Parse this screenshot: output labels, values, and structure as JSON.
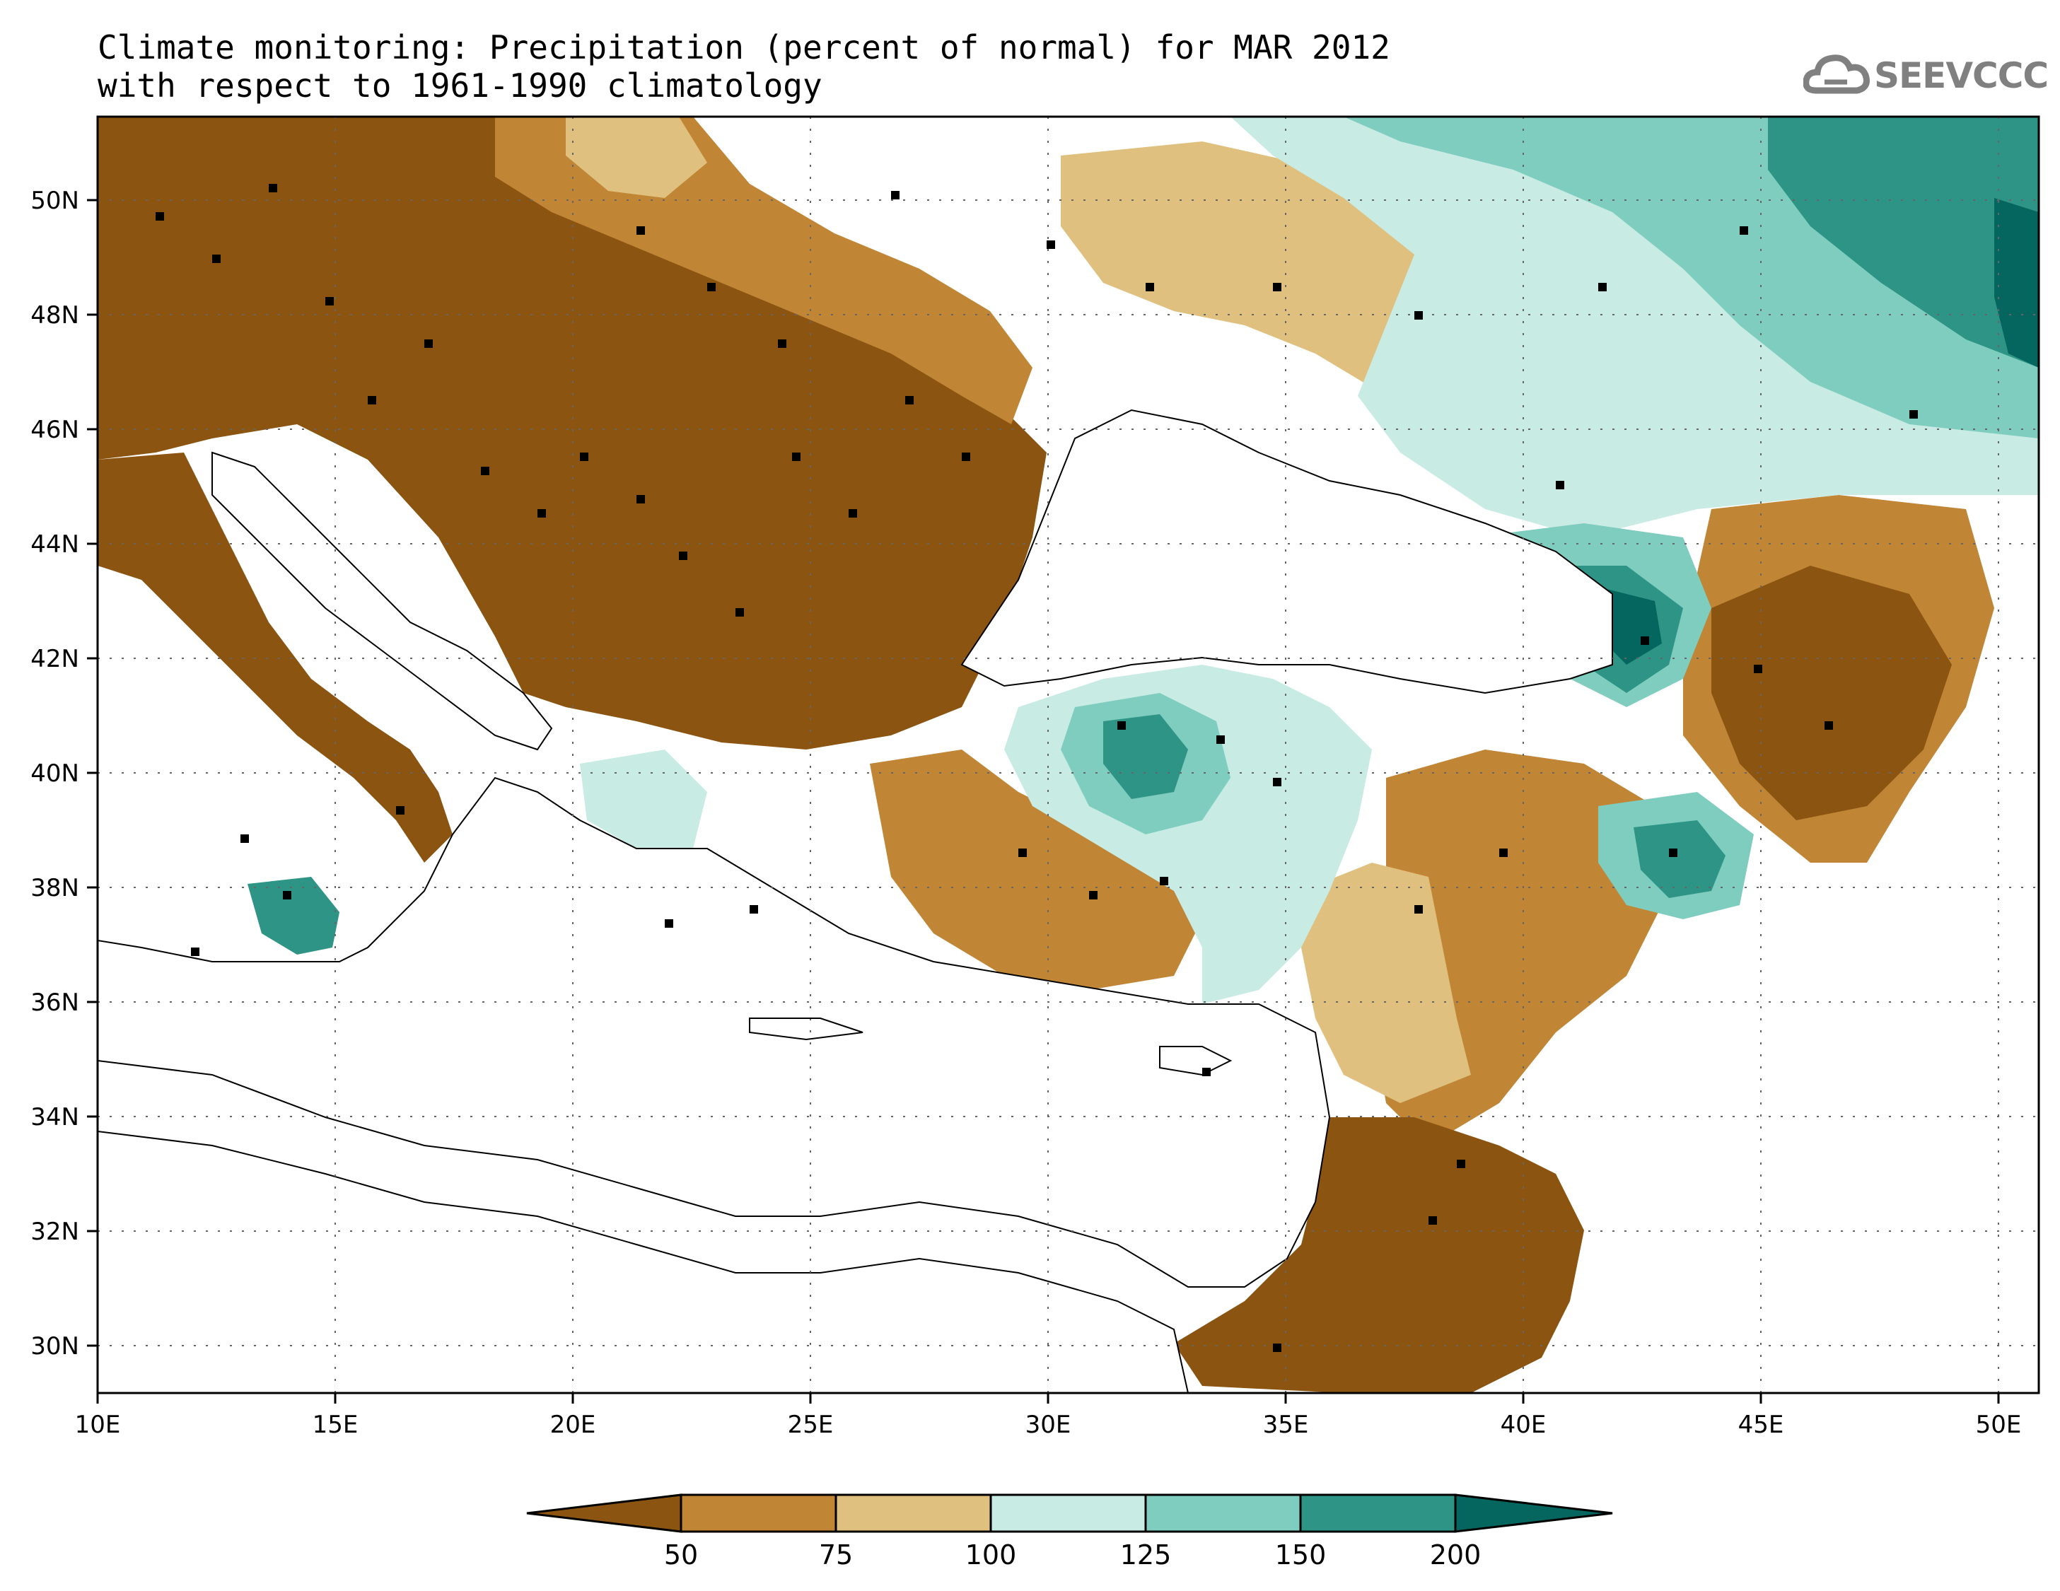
{
  "title": {
    "line1": "Climate monitoring: Precipitation (percent of normal) for MAR 2012",
    "line2": "with respect to 1961-1990 climatology"
  },
  "logo": {
    "text": "SEEVCCC",
    "icon": "cloud-icon"
  },
  "axes": {
    "x_ticks": [
      "10E",
      "15E",
      "20E",
      "25E",
      "30E",
      "35E",
      "40E",
      "45E",
      "50E"
    ],
    "y_ticks": [
      "50N",
      "48N",
      "46N",
      "44N",
      "42N",
      "40N",
      "38N",
      "36N",
      "34N",
      "32N",
      "30N"
    ]
  },
  "colorbar": {
    "labels": [
      "50",
      "75",
      "100",
      "125",
      "150",
      "200"
    ],
    "colors": [
      "#8b5410",
      "#c08535",
      "#dfc07e",
      "#c8ebe3",
      "#7ecdbf",
      "#2e9486",
      "#04665f"
    ]
  }
}
